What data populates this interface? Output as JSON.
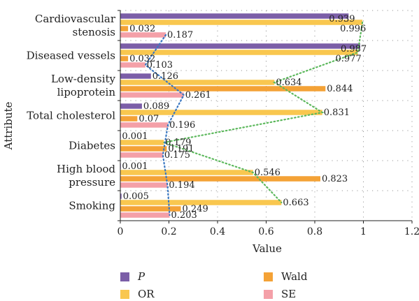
{
  "chart_data": {
    "type": "bar",
    "orientation": "horizontal",
    "xlabel": "Value",
    "ylabel": "Attribute",
    "xlim": [
      0,
      1.2
    ],
    "xticks": [
      "0",
      "0.2",
      "0.4",
      "0.6",
      "0.8",
      "1",
      "1.2"
    ],
    "categories": [
      [
        "Cardiovascular",
        "stenosis"
      ],
      [
        "Diseased vessels"
      ],
      [
        "Low-density",
        "lipoprotein"
      ],
      [
        "Total cholesterol"
      ],
      [
        "Diabetes"
      ],
      [
        "High blood",
        "pressure"
      ],
      [
        "Smoking"
      ]
    ],
    "series": [
      {
        "name": "P",
        "color": "#7b5ea7",
        "values": [
          0.939,
          0.987,
          0.126,
          0.089,
          0.001,
          0.001,
          0.005
        ]
      },
      {
        "name": "OR",
        "color": "#f9c74f",
        "values": [
          0.996,
          0.977,
          0.634,
          0.831,
          0.179,
          0.546,
          0.663
        ]
      },
      {
        "name": "Wald",
        "color": "#f4a236",
        "values": [
          0.032,
          0.032,
          0.844,
          0.07,
          0.191,
          0.823,
          0.249
        ]
      },
      {
        "name": "SE",
        "color": "#f4a0a8",
        "values": [
          0.187,
          0.103,
          0.261,
          0.196,
          0.175,
          0.194,
          0.203
        ]
      }
    ],
    "data_labels": [
      [
        "0.939",
        "0.996",
        "0.032",
        "0.187"
      ],
      [
        "0.987",
        "0.977",
        "0.032",
        "0.103"
      ],
      [
        "0.126",
        "0.634",
        "0.844",
        "0.261"
      ],
      [
        "0.089",
        "0.831",
        "0.07",
        "0.196"
      ],
      [
        "0.001",
        "0.179",
        "0.191",
        "0.175"
      ],
      [
        "0.001",
        "0.546",
        "0.823",
        "0.194"
      ],
      [
        "0.005",
        "0.663",
        "0.249",
        "0.203"
      ]
    ],
    "trend_lines": [
      {
        "series": "OR",
        "color": "#5cb85c",
        "style": "dotted"
      },
      {
        "series": "SE",
        "color": "#3a78c2",
        "style": "dotted"
      }
    ],
    "legend_position": "bottom",
    "grid": "dotted"
  }
}
